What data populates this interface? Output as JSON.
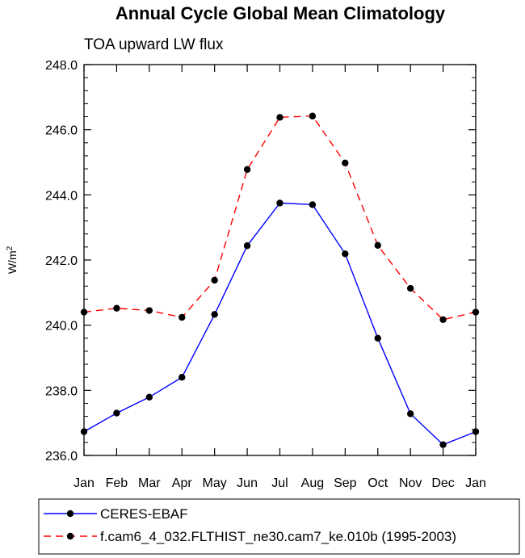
{
  "chart_data": {
    "type": "line",
    "title": "Annual Cycle Global Mean Climatology",
    "subtitle": "TOA upward LW flux",
    "xlabel": "",
    "ylabel": "W/m",
    "ylabel_superscript": "2",
    "categories": [
      "Jan",
      "Feb",
      "Mar",
      "Apr",
      "May",
      "Jun",
      "Jul",
      "Aug",
      "Sep",
      "Oct",
      "Nov",
      "Dec",
      "Jan"
    ],
    "ylim": [
      236.0,
      248.0
    ],
    "y_ticks": [
      "236.0",
      "238.0",
      "240.0",
      "242.0",
      "244.0",
      "246.0",
      "248.0"
    ],
    "grid": false,
    "legend_position": "bottom",
    "series": [
      {
        "name": "CERES-EBAF",
        "color": "#0000ff",
        "dash": "solid",
        "values": [
          236.73,
          237.3,
          237.79,
          238.4,
          240.33,
          242.44,
          243.75,
          243.7,
          242.19,
          239.6,
          237.28,
          236.33,
          236.73
        ]
      },
      {
        "name": "f.cam6_4_032.FLTHIST_ne30.cam7_ke.010b (1995-2003)",
        "color": "#ff0000",
        "dash": "dashed",
        "values": [
          240.4,
          240.52,
          240.45,
          240.24,
          241.38,
          244.78,
          246.38,
          246.42,
          244.98,
          242.45,
          241.13,
          240.17,
          240.4
        ]
      }
    ]
  }
}
